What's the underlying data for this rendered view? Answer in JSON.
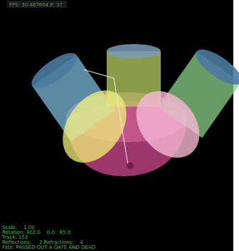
{
  "hud": {
    "fps": "FPS: 30.467804 P: 37"
  },
  "status": [
    "Scale:    1.00",
    "Rotation: 302.0    0.0   85.0",
    "Track: 153",
    "Reflections:     2 Refractions:    4",
    "Fate: PASSED OUT A GATE AND DEAD"
  ]
}
